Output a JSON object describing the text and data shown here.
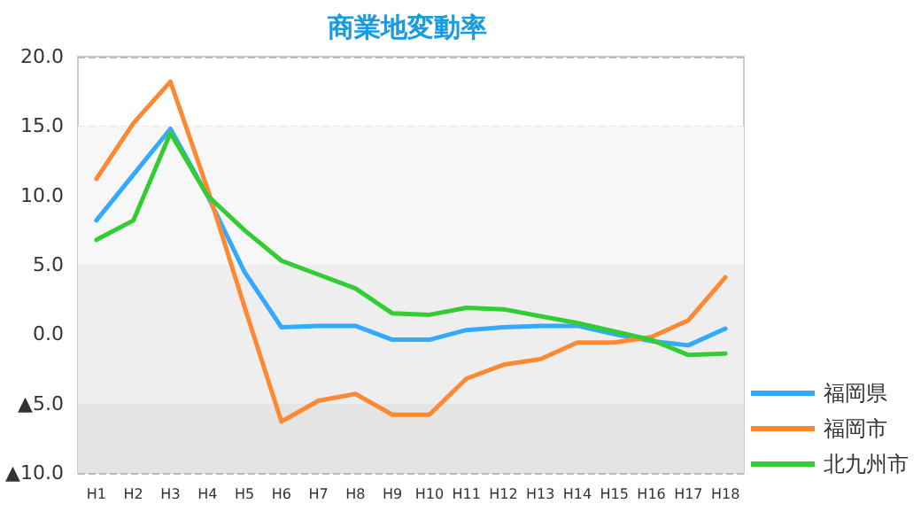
{
  "chart_data": {
    "type": "line",
    "title": "商業地変動率",
    "categories": [
      "H1",
      "H2",
      "H3",
      "H4",
      "H5",
      "H6",
      "H7",
      "H8",
      "H9",
      "H10",
      "H11",
      "H12",
      "H13",
      "H14",
      "H15",
      "H16",
      "H17",
      "H18"
    ],
    "series": [
      {
        "name": "福岡県",
        "color": "#33aaff",
        "values": [
          8.2,
          11.5,
          14.8,
          10.0,
          4.5,
          0.5,
          0.6,
          0.6,
          -0.4,
          -0.4,
          0.3,
          0.5,
          0.6,
          0.6,
          0.0,
          -0.5,
          -0.8,
          0.4
        ]
      },
      {
        "name": "福岡市",
        "color": "#ff8833",
        "values": [
          11.2,
          15.2,
          18.2,
          10.5,
          2.0,
          -6.3,
          -4.8,
          -4.3,
          -5.8,
          -5.8,
          -3.2,
          -2.2,
          -1.8,
          -0.6,
          -0.6,
          -0.2,
          1.0,
          4.1
        ]
      },
      {
        "name": "北九州市",
        "color": "#33cc33",
        "values": [
          6.8,
          8.2,
          14.5,
          10.0,
          7.5,
          5.3,
          4.3,
          3.3,
          1.5,
          1.4,
          1.9,
          1.8,
          1.3,
          0.8,
          0.2,
          -0.4,
          -1.5,
          -1.4
        ]
      }
    ],
    "ylim": [
      -10,
      20
    ],
    "yticks": [
      {
        "value": -10,
        "label": "▲10.0"
      },
      {
        "value": -5,
        "label": "▲5.0"
      },
      {
        "value": 0,
        "label": "0.0"
      },
      {
        "value": 5,
        "label": "5.0"
      },
      {
        "value": 10,
        "label": "10.0"
      },
      {
        "value": 15,
        "label": "15.0"
      },
      {
        "value": 20,
        "label": "20.0"
      }
    ],
    "bands": [
      {
        "axis": "y",
        "from": 5,
        "to": 15,
        "color": "#f7f7f7"
      },
      {
        "axis": "y",
        "from": -5,
        "to": 5,
        "color": "#eeeeee"
      },
      {
        "axis": "y",
        "from": -10,
        "to": -5,
        "color": "#e4e4e4"
      }
    ],
    "grid": "y",
    "legend": "bottom right",
    "marker": "none",
    "line_style": "solid"
  }
}
